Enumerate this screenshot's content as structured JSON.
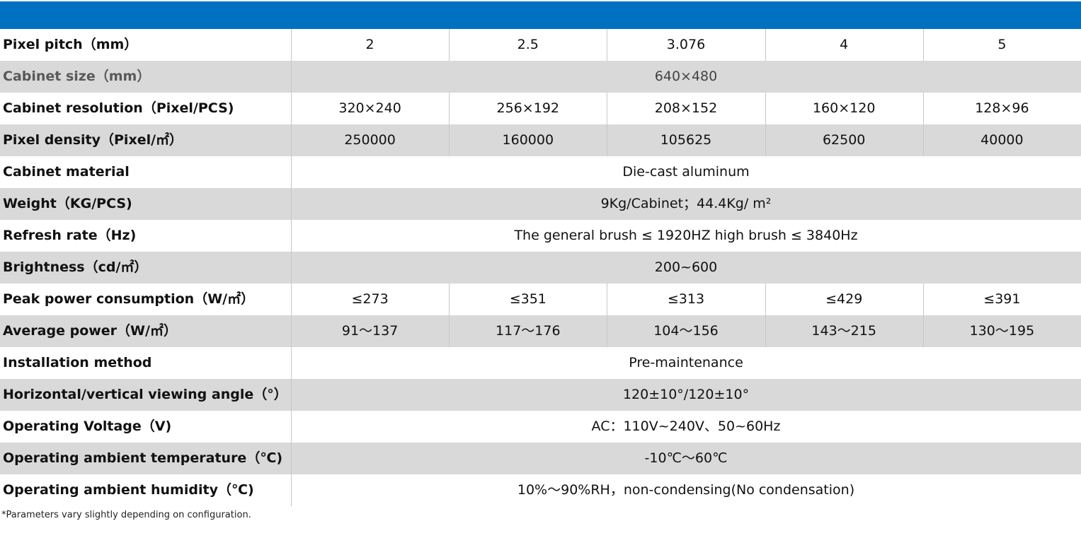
{
  "table": {
    "rows": [
      {
        "label": "Pixel pitch（mm）",
        "cells": [
          "2",
          "2.5",
          "3.076",
          "4",
          "5"
        ]
      },
      {
        "label": "Cabinet size（mm）",
        "cells": [
          "640×480"
        ]
      },
      {
        "label": "Cabinet resolution（Pixel/PCS)",
        "cells": [
          "320×240",
          "256×192",
          "208×152",
          "160×120",
          "128×96"
        ]
      },
      {
        "label": "Pixel density（Pixel/㎡）",
        "cells": [
          "250000",
          "160000",
          "105625",
          "62500",
          "40000"
        ]
      },
      {
        "label": "Cabinet material",
        "cells": [
          "Die-cast aluminum"
        ]
      },
      {
        "label": "Weight（KG/PCS)",
        "cells": [
          "9Kg/Cabinet；44.4Kg/ m²"
        ]
      },
      {
        "label": "Refresh rate（Hz)",
        "cells": [
          "The general brush ≤ 1920HZ high brush ≤ 3840Hz"
        ]
      },
      {
        "label": "Brightness（cd/㎡）",
        "cells": [
          "200~600"
        ]
      },
      {
        "label": "Peak power consumption（W/㎡）",
        "cells": [
          "≤273",
          "≤351",
          "≤313",
          "≤429",
          "≤391"
        ]
      },
      {
        "label": "Average power（W/㎡）",
        "cells": [
          "91～137",
          "117～176",
          "104～156",
          "143～215",
          "130～195"
        ]
      },
      {
        "label": "Installation method",
        "cells": [
          "Pre-maintenance"
        ]
      },
      {
        "label": "Horizontal/vertical viewing angle（°）",
        "cells": [
          "120±10°/120±10°"
        ]
      },
      {
        "label": "Operating Voltage（V)",
        "cells": [
          "AC：110V~240V、50~60Hz"
        ]
      },
      {
        "label": "Operating ambient temperature（℃)",
        "cells": [
          "-10℃～60℃"
        ]
      },
      {
        "label": "Operating ambient humidity（℃)",
        "cells": [
          "10%～90%RH，non-condensing(No condensation)"
        ]
      }
    ]
  },
  "footnote": "*Parameters vary slightly depending on configuration."
}
